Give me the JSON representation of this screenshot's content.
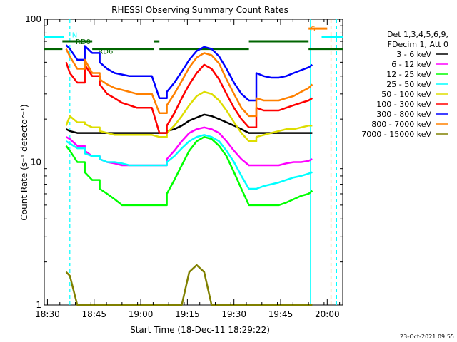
{
  "chart_data": {
    "type": "line",
    "title": "RHESSI Observing Summary Count Rates",
    "xlabel": "Start Time (18-Dec-11 18:29:22)",
    "ylabel": "Count Rate (s⁻¹ detector⁻¹)",
    "yscale": "log",
    "ylim": [
      1,
      100
    ],
    "xlim": [
      18.483,
      20.083
    ],
    "x_ticks": [
      "18:30",
      "18:45",
      "19:00",
      "19:15",
      "19:30",
      "19:45",
      "20:00"
    ],
    "y_ticks": [
      "1",
      "10",
      "100"
    ],
    "legend_header": [
      "Det 1,3,4,5,6,9,",
      "FDecim 1, Att 0"
    ],
    "legend_position": "top-right",
    "footer": "23-Oct-2021 09:55",
    "x": [
      18.6,
      18.62,
      18.66,
      18.7,
      18.74,
      18.78,
      18.82,
      18.86,
      18.9,
      18.94,
      18.98,
      19.02,
      19.06,
      19.1,
      19.14,
      19.18,
      19.22,
      19.26,
      19.3,
      19.34,
      19.38,
      19.42,
      19.46,
      19.5,
      19.54,
      19.58,
      19.62,
      19.66,
      19.7,
      19.74,
      19.78,
      19.82,
      19.86,
      19.9,
      19.92
    ],
    "gaps_after_x": [
      18.66,
      18.74,
      19.1,
      19.58
    ],
    "series": [
      {
        "name": "3 - 6 keV",
        "color": "#000000",
        "values": [
          17.0,
          16.5,
          16.0,
          16.0,
          16.0,
          16.0,
          16.0,
          16.0,
          16.0,
          16.0,
          16.0,
          16.0,
          16.0,
          16.0,
          16.5,
          17.0,
          18.0,
          19.5,
          20.5,
          21.5,
          21.0,
          20.0,
          19.0,
          18.0,
          17.0,
          16.0,
          16.0,
          16.0,
          16.0,
          16.0,
          16.0,
          16.0,
          16.0,
          16.0,
          16.0
        ]
      },
      {
        "name": "6 - 12 keV",
        "color": "#ff00ff",
        "values": [
          15.0,
          14.5,
          13.0,
          12.0,
          11.0,
          10.5,
          10.0,
          9.8,
          9.5,
          9.5,
          9.5,
          9.5,
          9.5,
          9.5,
          10.5,
          12.0,
          14.0,
          16.0,
          17.0,
          17.5,
          17.0,
          16.0,
          14.0,
          12.0,
          10.5,
          9.5,
          9.5,
          9.5,
          9.5,
          9.5,
          9.8,
          10.0,
          10.0,
          10.2,
          10.5
        ]
      },
      {
        "name": "12 - 25 keV",
        "color": "#00ff00",
        "values": [
          13.0,
          12.0,
          10.0,
          8.5,
          7.5,
          6.5,
          6.0,
          5.5,
          5.0,
          5.0,
          5.0,
          5.0,
          5.0,
          5.0,
          6.0,
          7.5,
          9.5,
          12.0,
          14.0,
          15.0,
          14.5,
          13.0,
          11.0,
          8.5,
          6.5,
          5.0,
          5.0,
          5.0,
          5.0,
          5.0,
          5.2,
          5.5,
          5.8,
          6.0,
          6.3
        ]
      },
      {
        "name": "25 - 50 keV",
        "color": "#00ffff",
        "values": [
          14.0,
          13.5,
          12.5,
          11.5,
          11.0,
          10.5,
          10.0,
          10.0,
          9.8,
          9.5,
          9.5,
          9.5,
          9.5,
          9.5,
          10.0,
          11.0,
          12.5,
          14.0,
          15.0,
          15.5,
          15.0,
          14.0,
          12.0,
          10.0,
          8.0,
          6.5,
          6.5,
          6.8,
          7.0,
          7.2,
          7.5,
          7.8,
          8.0,
          8.3,
          8.5
        ]
      },
      {
        "name": "50 - 100 keV",
        "color": "#dddd00",
        "values": [
          18.0,
          21.0,
          19.0,
          18.5,
          17.5,
          16.5,
          16.0,
          15.5,
          15.5,
          15.5,
          15.5,
          15.5,
          15.5,
          15.0,
          16.0,
          18.0,
          21.0,
          25.0,
          29.0,
          31.0,
          30.0,
          27.0,
          23.0,
          19.0,
          16.0,
          14.0,
          15.0,
          15.5,
          16.0,
          16.5,
          17.0,
          17.0,
          17.5,
          18.0,
          18.0
        ]
      },
      {
        "name": "100 - 300 keV",
        "color": "#ff0000",
        "values": [
          50.0,
          42.0,
          36.0,
          48.0,
          40.0,
          35.0,
          30.0,
          28.0,
          26.0,
          25.0,
          24.0,
          24.0,
          24.0,
          16.0,
          18.0,
          22.0,
          28.0,
          35.0,
          42.0,
          48.0,
          45.0,
          38.0,
          30.0,
          24.0,
          20.0,
          17.5,
          24.0,
          23.0,
          23.0,
          23.0,
          24.0,
          25.0,
          26.0,
          27.0,
          28.0
        ]
      },
      {
        "name": "300 - 800 keV",
        "color": "#0000ff",
        "values": [
          66.0,
          62.0,
          52.0,
          65.0,
          58.0,
          50.0,
          45.0,
          42.0,
          41.0,
          40.0,
          40.0,
          40.0,
          40.0,
          28.0,
          31.0,
          36.0,
          43.0,
          52.0,
          60.0,
          64.0,
          62.0,
          55.0,
          45.0,
          36.0,
          30.0,
          27.0,
          42.0,
          40.0,
          39.0,
          39.0,
          40.0,
          42.0,
          44.0,
          46.0,
          48.0
        ]
      },
      {
        "name": "800 - 7000 keV",
        "color": "#ff8000",
        "values": [
          62.0,
          55.0,
          45.0,
          52.0,
          42.0,
          38.0,
          35.0,
          33.0,
          32.0,
          31.0,
          30.0,
          30.0,
          30.0,
          22.0,
          25.0,
          30.0,
          37.0,
          46.0,
          54.0,
          58.0,
          56.0,
          49.0,
          38.0,
          30.0,
          24.0,
          21.0,
          28.0,
          27.0,
          27.0,
          27.0,
          28.0,
          29.0,
          31.0,
          33.0,
          35.0
        ]
      },
      {
        "name": "7000 - 15000 keV",
        "color": "#808000",
        "values": [
          1.7,
          1.6,
          1.0,
          1.0,
          1.0,
          1.0,
          1.0,
          1.0,
          1.0,
          1.0,
          1.0,
          1.0,
          1.0,
          1.0,
          1.0,
          1.0,
          1.0,
          1.7,
          1.9,
          1.7,
          1.0,
          1.0,
          1.0,
          1.0,
          1.0,
          1.0,
          1.0,
          1.0,
          1.0,
          1.0,
          1.0,
          1.0,
          1.0,
          1.0,
          1.0
        ]
      }
    ],
    "annotations": [
      {
        "text": "N",
        "x": 18.62,
        "color": "#00ffff"
      },
      {
        "text": "RD0",
        "x": 18.64,
        "color": "#006400"
      },
      {
        "text": "RD6",
        "x": 18.76,
        "color": "#006400"
      },
      {
        "text": "S",
        "x": 19.9,
        "color": "#ff8000"
      }
    ],
    "flag_bars": [
      {
        "color": "#006400",
        "y": 62,
        "ranges": [
          [
            18.483,
            18.58
          ],
          [
            18.74,
            19.07
          ],
          [
            19.1,
            19.58
          ],
          [
            19.9,
            20.083
          ]
        ]
      },
      {
        "color": "#006400",
        "y": 70,
        "ranges": [
          [
            18.58,
            18.74
          ],
          [
            19.07,
            19.1
          ],
          [
            19.58,
            19.9
          ]
        ]
      },
      {
        "color": "#00ffff",
        "y": 75,
        "ranges": [
          [
            18.483,
            18.59
          ],
          [
            19.97,
            20.083
          ]
        ]
      },
      {
        "color": "#ff8000",
        "y": 86,
        "ranges": [
          [
            19.9,
            20.0
          ]
        ]
      }
    ],
    "vlines": [
      {
        "x": 18.62,
        "color": "#00ffff",
        "style": "dashed"
      },
      {
        "x": 19.91,
        "color": "#00ffff",
        "style": "solid"
      },
      {
        "x": 20.02,
        "color": "#ff8000",
        "style": "dashed"
      },
      {
        "x": 20.05,
        "color": "#00ffff",
        "style": "dashed"
      }
    ]
  }
}
